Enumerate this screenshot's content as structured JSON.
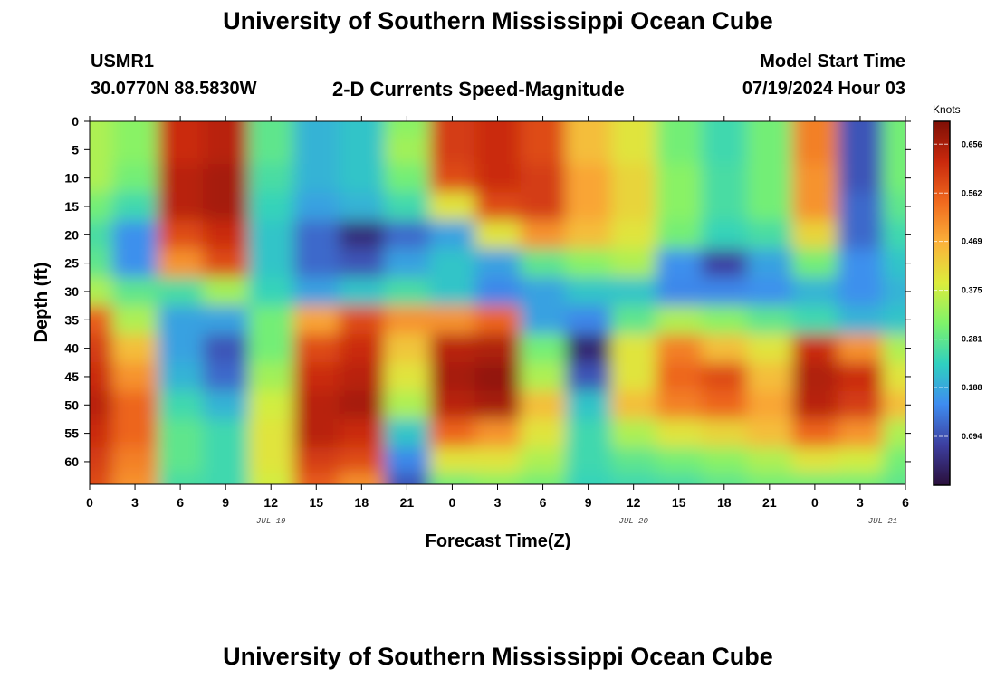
{
  "header": {
    "title": "University of Southern Mississippi Ocean Cube",
    "station_id": "USMR1",
    "coordinates": "30.0770N  88.5830W",
    "plot_title": "2-D Currents Speed-Magnitude",
    "model_start_label": "Model Start Time",
    "model_start_value": "07/19/2024 Hour 03"
  },
  "footer": {
    "title": "University of Southern Mississippi Ocean Cube"
  },
  "chart_data": {
    "type": "heatmap",
    "title": "2-D Currents Speed-Magnitude",
    "xlabel": "Forecast Time(Z)",
    "ylabel": "Depth (ft)",
    "x_tick_labels": [
      "0",
      "3",
      "6",
      "9",
      "12",
      "15",
      "18",
      "21",
      "0",
      "3",
      "6",
      "9",
      "12",
      "15",
      "18",
      "21",
      "0",
      "3",
      "6"
    ],
    "x_date_labels": [
      "JUL 19",
      "JUL 20",
      "JUL 21"
    ],
    "y_tick_labels": [
      "0",
      "5",
      "10",
      "15",
      "20",
      "25",
      "30",
      "35",
      "40",
      "45",
      "50",
      "55",
      "60"
    ],
    "ylim": [
      0,
      64
    ],
    "y_inverted": true,
    "colorbar": {
      "title": "Knots",
      "tick_labels": [
        "0.656",
        "0.562",
        "0.469",
        "0.375",
        "0.281",
        "0.188",
        "0.094"
      ],
      "tick_values": [
        0.656,
        0.562,
        0.469,
        0.375,
        0.281,
        0.188,
        0.094
      ],
      "range": [
        0.0,
        0.7
      ],
      "colors": [
        "#2a0f3a",
        "#3d3fa0",
        "#3e8cf0",
        "#2fd0c0",
        "#7ef36a",
        "#dcec3c",
        "#fbb13a",
        "#f06a1e",
        "#c9290d",
        "#7e0f05"
      ]
    },
    "x_hours": [
      0,
      3,
      6,
      9,
      12,
      15,
      18,
      21,
      24,
      27,
      30,
      33,
      36,
      39,
      42,
      45,
      48,
      51,
      54
    ],
    "depths_ft": [
      0,
      5,
      10,
      15,
      20,
      25,
      30,
      35,
      40,
      45,
      50,
      55,
      60,
      64
    ],
    "values_knots": [
      [
        0.35,
        0.32,
        0.62,
        0.64,
        0.28,
        0.2,
        0.22,
        0.32,
        0.6,
        0.62,
        0.58,
        0.45,
        0.4,
        0.3,
        0.25,
        0.3,
        0.52,
        0.1,
        0.3
      ],
      [
        0.35,
        0.32,
        0.62,
        0.64,
        0.28,
        0.2,
        0.22,
        0.34,
        0.6,
        0.62,
        0.58,
        0.45,
        0.4,
        0.3,
        0.25,
        0.3,
        0.52,
        0.1,
        0.3
      ],
      [
        0.35,
        0.3,
        0.64,
        0.66,
        0.26,
        0.2,
        0.22,
        0.3,
        0.58,
        0.62,
        0.6,
        0.48,
        0.42,
        0.32,
        0.26,
        0.3,
        0.5,
        0.1,
        0.3
      ],
      [
        0.3,
        0.25,
        0.64,
        0.66,
        0.24,
        0.18,
        0.2,
        0.25,
        0.4,
        0.58,
        0.6,
        0.48,
        0.42,
        0.32,
        0.26,
        0.3,
        0.5,
        0.12,
        0.28
      ],
      [
        0.26,
        0.16,
        0.58,
        0.62,
        0.22,
        0.12,
        0.05,
        0.12,
        0.18,
        0.4,
        0.5,
        0.45,
        0.4,
        0.3,
        0.24,
        0.26,
        0.42,
        0.12,
        0.25
      ],
      [
        0.28,
        0.16,
        0.5,
        0.58,
        0.22,
        0.12,
        0.1,
        0.18,
        0.22,
        0.18,
        0.28,
        0.32,
        0.35,
        0.16,
        0.08,
        0.18,
        0.3,
        0.16,
        0.22
      ],
      [
        0.35,
        0.28,
        0.26,
        0.34,
        0.24,
        0.18,
        0.22,
        0.26,
        0.22,
        0.15,
        0.18,
        0.22,
        0.22,
        0.15,
        0.15,
        0.16,
        0.2,
        0.16,
        0.2
      ],
      [
        0.56,
        0.35,
        0.18,
        0.18,
        0.3,
        0.48,
        0.58,
        0.5,
        0.5,
        0.55,
        0.18,
        0.15,
        0.28,
        0.35,
        0.32,
        0.28,
        0.25,
        0.2,
        0.22
      ],
      [
        0.6,
        0.45,
        0.18,
        0.1,
        0.3,
        0.58,
        0.62,
        0.44,
        0.64,
        0.65,
        0.3,
        0.04,
        0.4,
        0.52,
        0.45,
        0.4,
        0.62,
        0.5,
        0.35
      ],
      [
        0.62,
        0.5,
        0.2,
        0.12,
        0.34,
        0.62,
        0.64,
        0.4,
        0.66,
        0.68,
        0.35,
        0.1,
        0.4,
        0.55,
        0.58,
        0.45,
        0.65,
        0.62,
        0.4
      ],
      [
        0.64,
        0.55,
        0.25,
        0.2,
        0.38,
        0.64,
        0.66,
        0.35,
        0.64,
        0.66,
        0.45,
        0.22,
        0.45,
        0.52,
        0.55,
        0.48,
        0.64,
        0.6,
        0.45
      ],
      [
        0.62,
        0.55,
        0.28,
        0.25,
        0.4,
        0.64,
        0.62,
        0.22,
        0.55,
        0.5,
        0.4,
        0.25,
        0.35,
        0.4,
        0.42,
        0.45,
        0.55,
        0.5,
        0.35
      ],
      [
        0.6,
        0.52,
        0.28,
        0.25,
        0.4,
        0.6,
        0.58,
        0.15,
        0.4,
        0.4,
        0.35,
        0.25,
        0.28,
        0.3,
        0.32,
        0.35,
        0.4,
        0.38,
        0.3
      ],
      [
        0.58,
        0.5,
        0.26,
        0.25,
        0.38,
        0.56,
        0.5,
        0.1,
        0.3,
        0.32,
        0.3,
        0.24,
        0.25,
        0.26,
        0.28,
        0.3,
        0.3,
        0.3,
        0.28
      ]
    ]
  }
}
